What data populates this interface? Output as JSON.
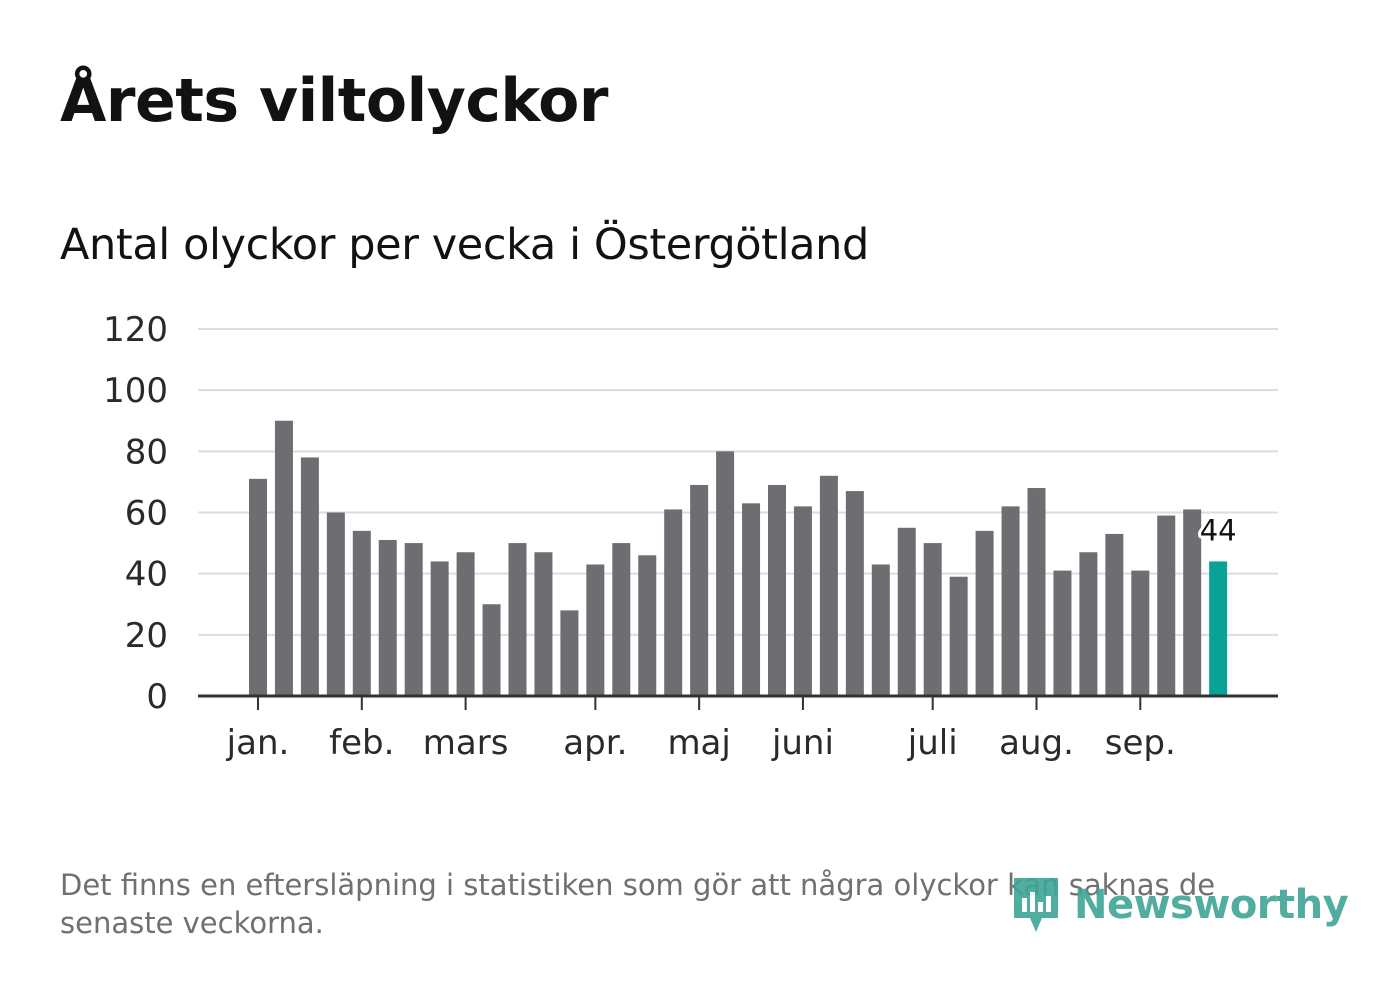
{
  "title": "Årets viltolyckor",
  "subtitle": "Antal olyckor per vecka i Östergötland",
  "footnote": "Det finns en eftersläpning i statistiken som gör att några olyckor kan saknas de senaste veckorna.",
  "brand": {
    "name": "Newsworthy",
    "logo_icon": "newsworthy-logo-icon"
  },
  "colors": {
    "bar": "#6e6d72",
    "highlight": "#08a396",
    "grid": "#dddddd",
    "axis": "#333333",
    "brand": "#3fa596"
  },
  "chart_data": {
    "type": "bar",
    "title": "Antal olyckor per vecka i Östergötland",
    "xlabel": "",
    "ylabel": "",
    "ylim": [
      0,
      120
    ],
    "yticks": [
      "0",
      "20",
      "40",
      "60",
      "80",
      "100",
      "120"
    ],
    "grid": true,
    "values": [
      71,
      90,
      78,
      60,
      54,
      51,
      50,
      44,
      47,
      30,
      50,
      47,
      28,
      43,
      50,
      46,
      61,
      69,
      80,
      63,
      69,
      62,
      72,
      67,
      43,
      55,
      50,
      39,
      54,
      62,
      68,
      41,
      47,
      53,
      41,
      59,
      61,
      44
    ],
    "month_labels": [
      {
        "label": "jan.",
        "week_index": 0
      },
      {
        "label": "feb.",
        "week_index": 4
      },
      {
        "label": "mars",
        "week_index": 8
      },
      {
        "label": "apr.",
        "week_index": 13
      },
      {
        "label": "maj",
        "week_index": 17
      },
      {
        "label": "juni",
        "week_index": 21
      },
      {
        "label": "juli",
        "week_index": 26
      },
      {
        "label": "aug.",
        "week_index": 30
      },
      {
        "label": "sep.",
        "week_index": 34
      }
    ],
    "highlight": {
      "week_index": 37,
      "label": "44"
    }
  }
}
